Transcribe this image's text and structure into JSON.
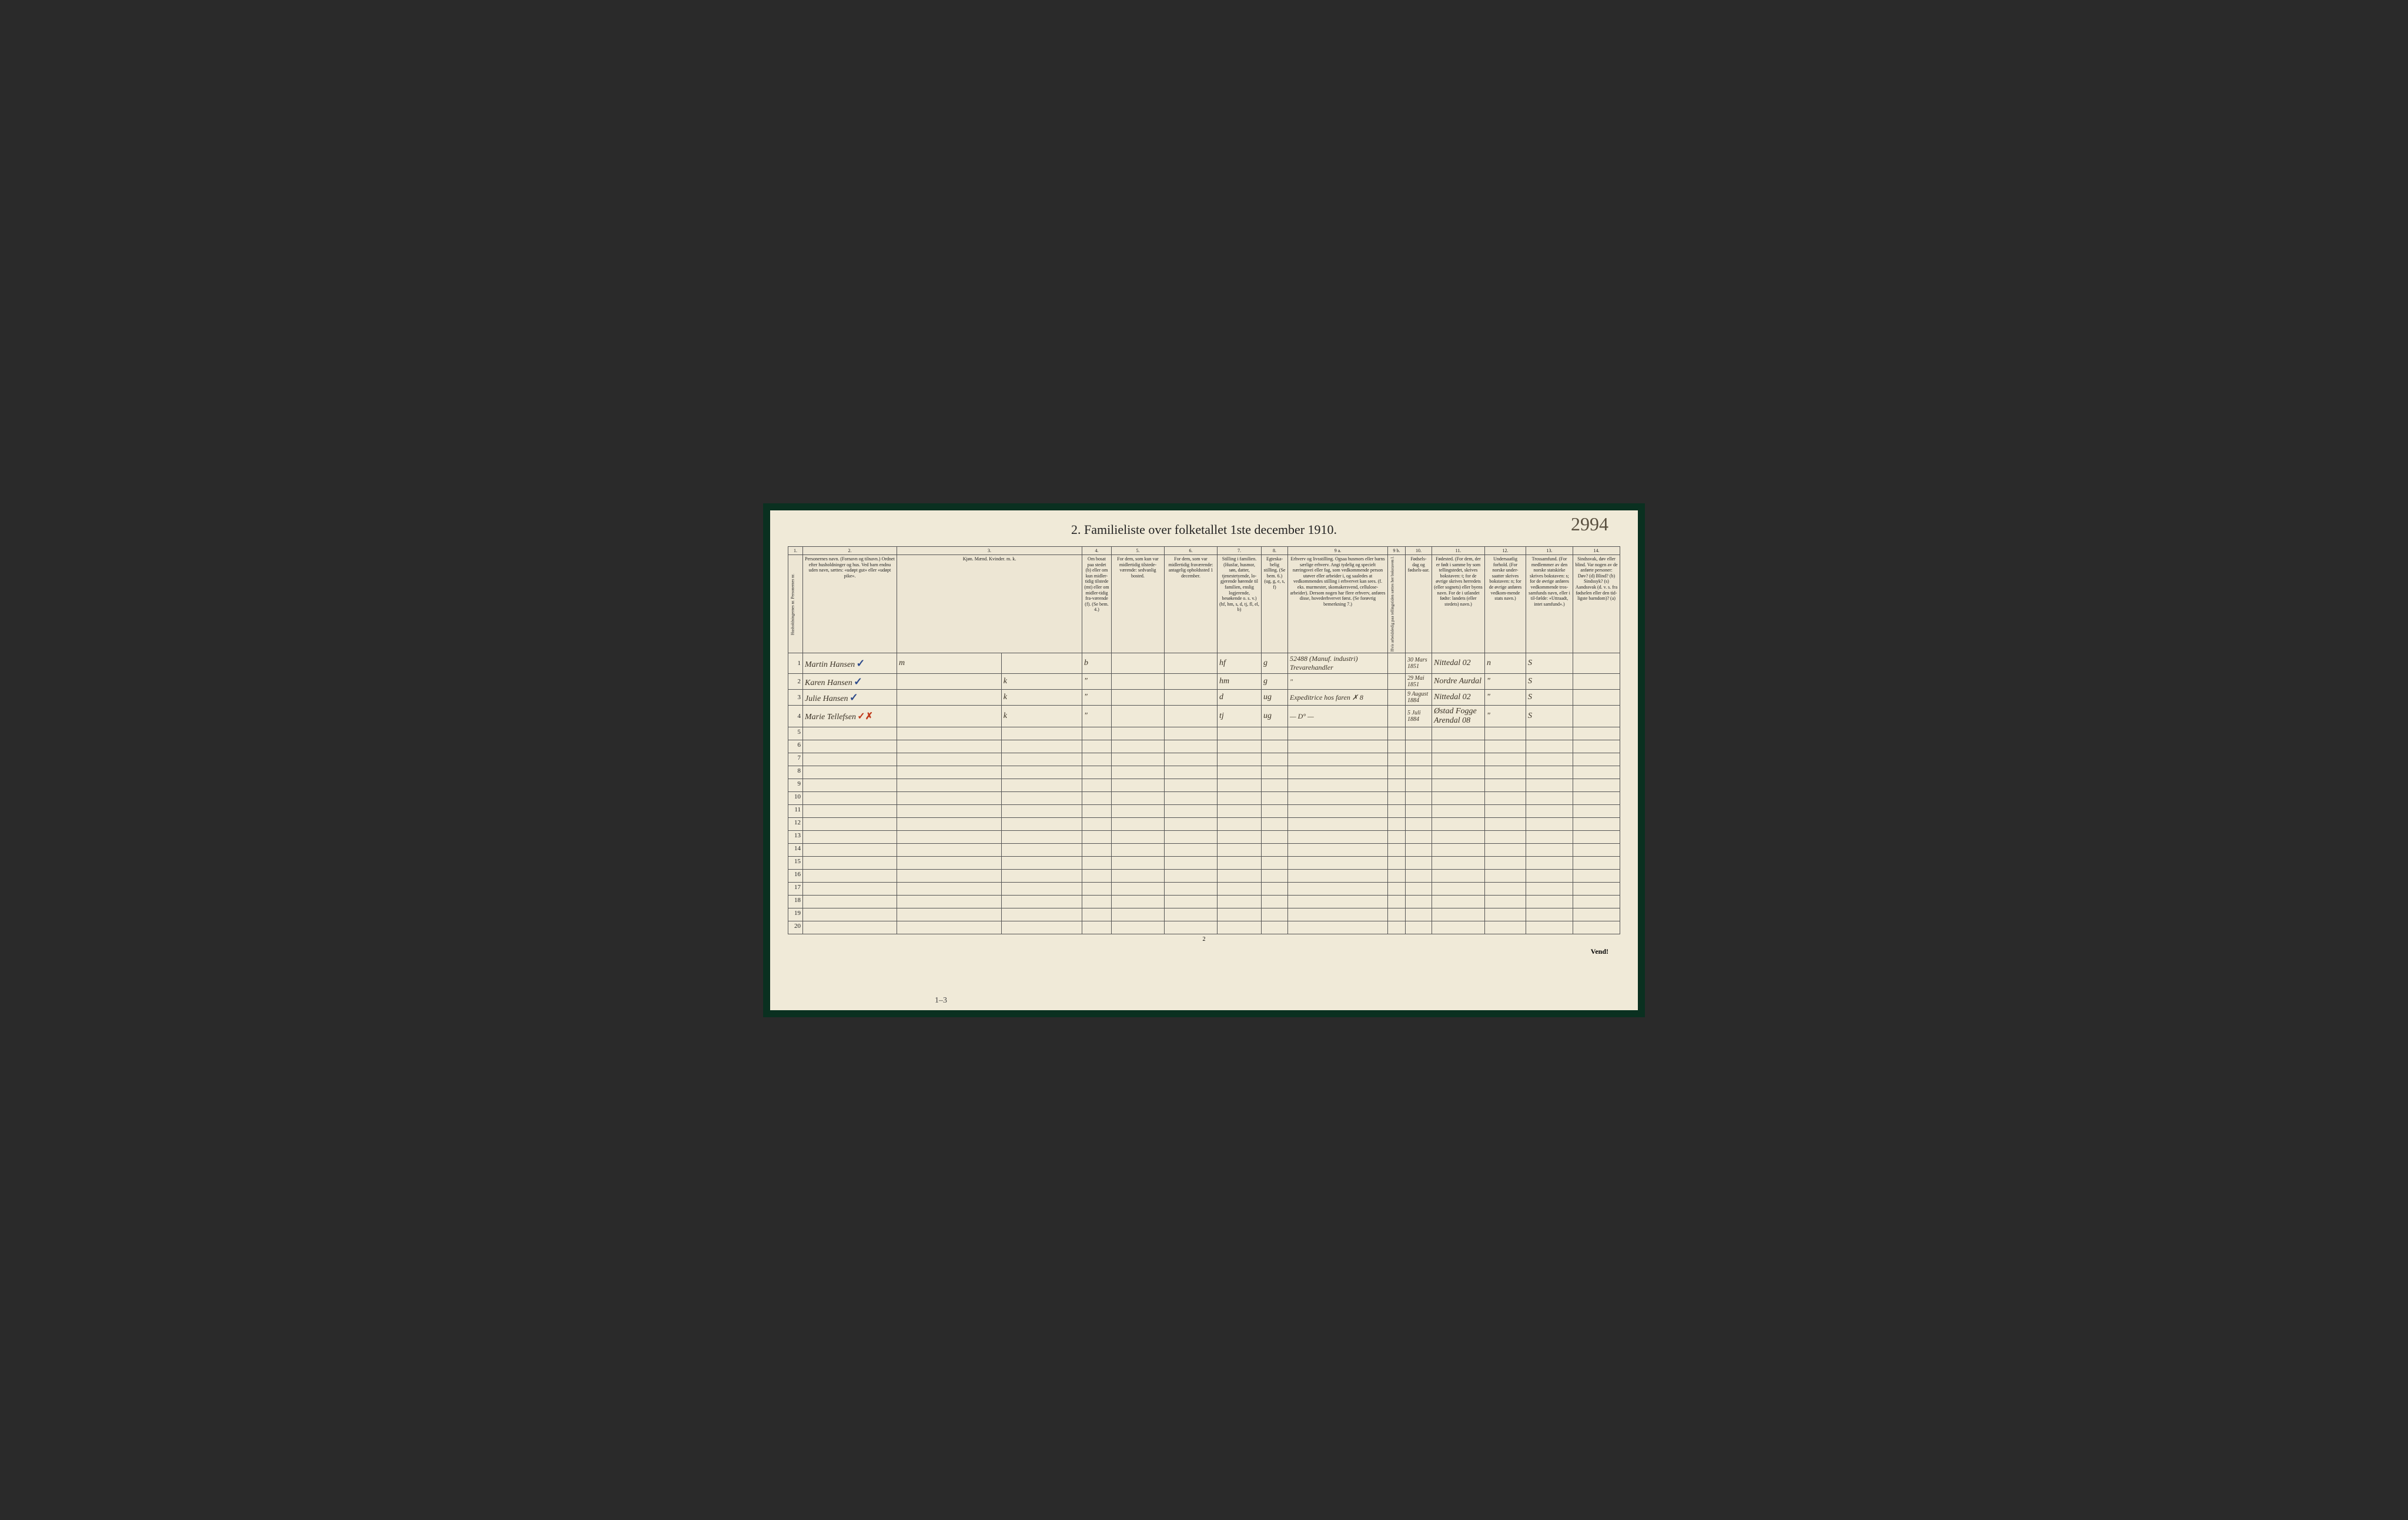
{
  "handwritten_topright": "2994",
  "title": "2.  Familieliste over folketallet 1ste december 1910.",
  "column_numbers": [
    "1.",
    "2.",
    "3.",
    "4.",
    "5.",
    "6.",
    "7.",
    "8.",
    "9 a.",
    "9 b.",
    "10.",
    "11.",
    "12.",
    "13.",
    "14."
  ],
  "headers": {
    "col1": "Husholdningernes nr.  Personernes nr.",
    "col2": "Personernes navn.\n(Fornavn og tilnavn.)\nOrdnet efter husholdninger og hus.\nVed barn endnu uden navn, sættes: «udøpt gut» eller «udøpt pike».",
    "col3": "Kjøn.\nMænd. Kvinder.\nm.  k.",
    "col4": "Om bosat paa stedet (b) eller om kun midler-tidig tilstede (mt) eller om midler-tidig fra-værende (f).\n(Se bem. 4.)",
    "col5": "For dem, som kun var midlertidig tilstede-værende:\nsedvanlig bosted.",
    "col6": "For dem, som var midlertidig fraværende:\nantagelig opholdssted 1 december.",
    "col7": "Stilling i familien.\n(Husfar, husmor, søn, datter, tjenestetyende, lo-gjerende hørende til familien, enslig logjerende, besøkende o. s. v.)\n(hf, hm, s, d, tj, fl, el, b)",
    "col8": "Egteska-belig stilling.\n(Se bem. 6.)\n(ug, g, e, s, f)",
    "col9a": "Erhverv og livsstilling.\nOgsaa husmors eller barns særlige erhverv.\nAngi tydelig og specielt næringsvei eller fag, som vedkommende person utøver eller arbeider i, og saaledes at vedkommendes stilling i erhvervet kan sees. (f. eks. murmester, skomakersvend, cellulose-arbeider). Dersom nogen har flere erhverv, anføres disse, hovederhvervet først.\n(Se forøvrig bemerkning 7.)",
    "col9b": "Hvis arbeidsledig paa tellingstiden sættes her bokstaven l.",
    "col10": "Fødsels-dag og fødsels-aar.",
    "col11": "Fødested.\n(For dem, der er født i samme by som tellingstedet, skrives bokstaven: t; for de øvrige skrives herredets (eller sognets) eller byens navn.\nFor de i utlandet fødte: landets (eller stedets) navn.)",
    "col12": "Undersaatlig forhold.\n(For norske under-saatter skrives bokstaven: n; for de øvrige anføres vedkom-mende stats navn.)",
    "col13": "Trossamfund.\n(For medlemmer av den norske statskirke skrives bokstaven: s; for de øvrige anføres vedkommende tros-samfunds navn, eller i til-fælde: «Uttraadt, intet samfund».)",
    "col14": "Sindssvak, døv eller blind.\nVar nogen av de anførte personer:\nDøv? (d)\nBlind? (b)\nSindssyk? (s)\nAandssvak (d. v. s. fra fødselen eller den tid-ligste barndom)? (a)"
  },
  "rows": [
    {
      "num": "1",
      "name": "Martin Hansen",
      "check": "✓",
      "sex": "m",
      "residence": "b",
      "position": "hf",
      "marital": "g",
      "occupation": "52488 (Manuf. industri) Trevarehandler",
      "birthdate": "30 Mars 1851",
      "birthplace": "Nittedal 02",
      "citizen": "n",
      "faith": "S"
    },
    {
      "num": "2",
      "name": "Karen Hansen",
      "check": "✓",
      "sex": "k",
      "residence": "\"",
      "position": "hm",
      "marital": "g",
      "occupation": "\"",
      "birthdate": "29 Mai 1851",
      "birthplace": "Nordre Aurdal",
      "citizen": "\"",
      "faith": "S"
    },
    {
      "num": "3",
      "name": "Julie Hansen",
      "check": "✓",
      "sex": "k",
      "residence": "\"",
      "position": "d",
      "marital": "ug",
      "occupation": "Expeditrice hos faren ✗ 8",
      "birthdate": "9 August 1884",
      "birthplace": "Nittedal 02",
      "citizen": "\"",
      "faith": "S"
    },
    {
      "num": "4",
      "name": "Marie Tellefsen",
      "check": "✓✗",
      "sex": "k",
      "residence": "\"",
      "position": "tj",
      "marital": "ug",
      "occupation": "— D° —",
      "birthdate": "5 Juli 1884",
      "birthplace": "Østad Fogge Arendal 08",
      "citizen": "\"",
      "faith": "S"
    }
  ],
  "empty_rows": [
    "5",
    "6",
    "7",
    "8",
    "9",
    "10",
    "11",
    "12",
    "13",
    "14",
    "15",
    "16",
    "17",
    "18",
    "19",
    "20"
  ],
  "page_number_center": "2",
  "footer_note": "Vend!",
  "bottom_annotation": "1–3",
  "colors": {
    "page_bg": "#f0ead8",
    "border": "#555555",
    "text": "#222222",
    "handwriting": "#3a3226",
    "checkmark": "#2d4a8a",
    "redmark": "#c0391a",
    "outer_bg": "#0a3020"
  }
}
